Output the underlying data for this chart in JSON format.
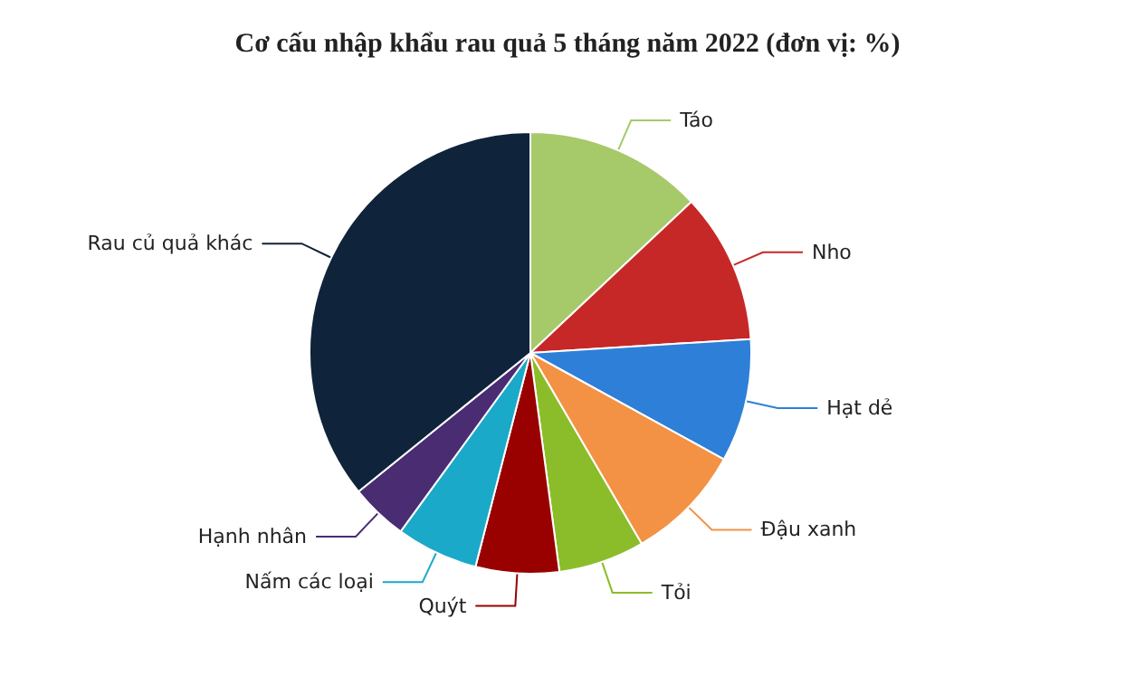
{
  "chart_data": {
    "type": "pie",
    "title": "Cơ cấu nhập khẩu rau quả 5 tháng năm 2022 (đơn vị: %)",
    "categories": [
      "Táo",
      "Nho",
      "Hạt dẻ",
      "Đậu xanh",
      "Tỏi",
      "Quýt",
      "Nấm các loại",
      "Hạnh nhân",
      "Rau củ quả khác"
    ],
    "values": [
      13,
      11,
      9,
      8.6,
      6.3,
      6.1,
      6,
      4.2,
      35.8
    ],
    "colors": [
      "#a6c96a",
      "#c62828",
      "#2e7fd8",
      "#f39245",
      "#8bbd2a",
      "#990000",
      "#1aa9c9",
      "#4a2c73",
      "#0f233b"
    ]
  }
}
